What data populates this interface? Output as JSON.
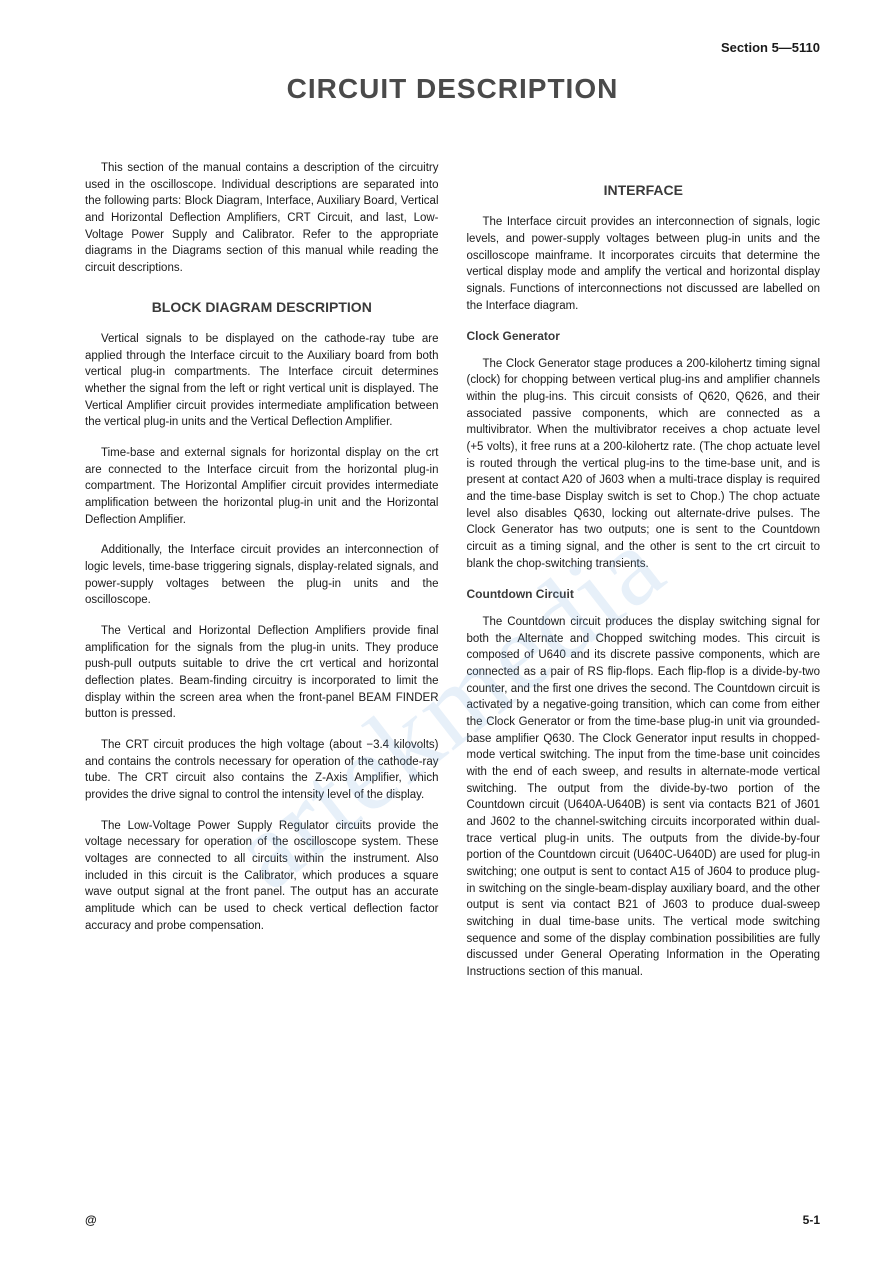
{
  "header": {
    "section": "Section 5—5110"
  },
  "title": "CIRCUIT DESCRIPTION",
  "watermark": "artekmedia",
  "intro": "This section of the manual contains a description of the circuitry used in the oscilloscope. Individual descriptions are separated into the following parts: Block Diagram, Interface, Auxiliary Board, Vertical and Horizontal Deflection Amplifiers, CRT Circuit, and last, Low-Voltage Power Supply and Calibrator. Refer to the appropriate diagrams in the Diagrams section of this manual while reading the circuit descriptions.",
  "block": {
    "heading": "BLOCK DIAGRAM DESCRIPTION",
    "p1": "Vertical signals to be displayed on the cathode-ray tube are applied through the Interface circuit to the Auxiliary board from both vertical plug-in compartments. The Interface circuit determines whether the signal from the left or right vertical unit is displayed. The Vertical Amplifier circuit provides intermediate amplification between the vertical plug-in units and the Vertical Deflection Amplifier.",
    "p2": "Time-base and external signals for horizontal display on the crt are connected to the Interface circuit from the horizontal plug-in compartment. The Horizontal Amplifier circuit provides intermediate amplification between the horizontal plug-in unit and the Horizontal Deflection Amplifier.",
    "p3": "Additionally, the Interface circuit provides an interconnection of logic levels, time-base triggering signals, display-related signals, and power-supply voltages between the plug-in units and the oscilloscope.",
    "p4": "The Vertical and Horizontal Deflection Amplifiers provide final amplification for the signals from the plug-in units. They produce push-pull outputs suitable to drive the crt vertical and horizontal deflection plates. Beam-finding circuitry is incorporated to limit the display within the screen area when the front-panel BEAM FINDER button is pressed.",
    "p5": "The CRT circuit produces the high voltage (about −3.4 kilovolts) and contains the controls necessary for operation of the cathode-ray tube. The CRT circuit also contains the Z-Axis Amplifier, which provides the drive signal to control the intensity level of the display.",
    "p6": "The Low-Voltage Power Supply Regulator circuits provide the voltage necessary for operation of the oscilloscope system. These voltages are connected to all circuits within the instrument. Also included in this circuit is the Calibrator, which produces a square wave output signal at the front panel. The output has an accurate amplitude which can be used to check vertical deflection factor accuracy and probe compensation."
  },
  "interface": {
    "heading": "INTERFACE",
    "p1": "The Interface circuit provides an interconnection of signals, logic levels, and power-supply voltages between plug-in units and the oscilloscope mainframe. It incorporates circuits that determine the vertical display mode and amplify the vertical and horizontal display signals. Functions of interconnections not discussed are labelled on the Interface diagram.",
    "clock": {
      "heading": "Clock Generator",
      "p1": "The Clock Generator stage produces a 200-kilohertz timing signal (clock) for chopping between vertical plug-ins and amplifier channels within the plug-ins. This circuit consists of Q620, Q626, and their associated passive components, which are connected as a multivibrator. When the multivibrator receives a chop actuate level (+5 volts), it free runs at a 200-kilohertz rate. (The chop actuate level is routed through the vertical plug-ins to the time-base unit, and is present at contact A20 of J603 when a multi-trace display is required and the time-base Display switch is set to Chop.) The chop actuate level also disables Q630, locking out alternate-drive pulses. The Clock Generator has two outputs; one is sent to the Countdown circuit as a timing signal, and the other is sent to the crt circuit to blank the chop-switching transients."
    },
    "countdown": {
      "heading": "Countdown Circuit",
      "p1": "The Countdown circuit produces the display switching signal for both the Alternate and Chopped switching modes. This circuit is composed of U640 and its discrete passive components, which are connected as a pair of RS flip-flops. Each flip-flop is a divide-by-two counter, and the first one drives the second. The Countdown circuit is activated by a negative-going transition, which can come from either the Clock Generator or from the time-base plug-in unit via grounded-base amplifier Q630. The Clock Generator input results in chopped-mode vertical switching. The input from the time-base unit coincides with the end of each sweep, and results in alternate-mode vertical switching. The output from the divide-by-two portion of the Countdown circuit (U640A-U640B) is sent via contacts B21 of J601 and J602 to the channel-switching circuits incorporated within dual-trace vertical plug-in units. The outputs from the divide-by-four portion of the Countdown circuit (U640C-U640D) are used for plug-in switching; one output is sent to contact A15 of J604 to produce plug-in switching on the single-beam-display auxiliary board, and the other output is sent via contact B21 of J603 to produce dual-sweep switching in dual time-base units. The vertical mode switching sequence and some of the display combination possibilities are fully discussed under General Operating Information in the Operating Instructions section of this manual."
    }
  },
  "footer": {
    "left": "@",
    "right": "5-1"
  }
}
